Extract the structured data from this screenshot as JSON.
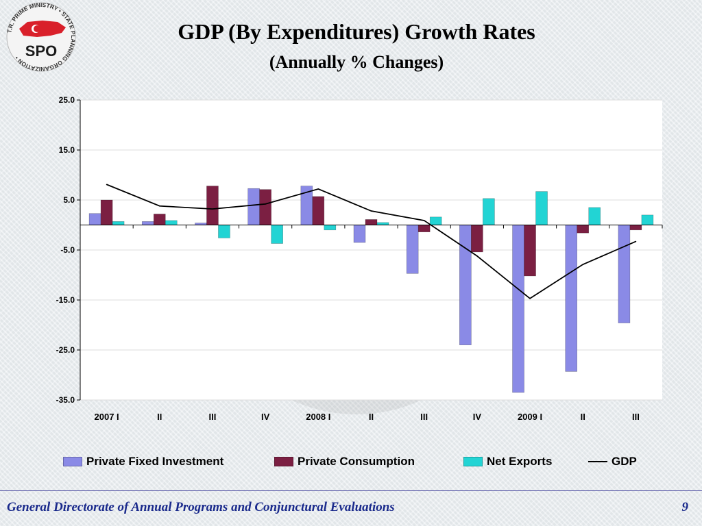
{
  "header": {
    "title": "GDP (By Expenditures) Growth Rates",
    "subtitle": "(Annually % Changes)",
    "logo_text": "SPO",
    "logo_ring_text": "T.R. PRIME MINISTRY • STATE PLANNING ORGANIZATION •"
  },
  "chart_data": {
    "type": "bar",
    "title": "",
    "xlabel": "",
    "ylabel": "",
    "ylim": [
      -35,
      25
    ],
    "yticks": [
      25,
      15,
      5,
      -5,
      -15,
      -25,
      -35
    ],
    "ytick_labels": [
      "25.0",
      "15.0",
      "5.0",
      "-5.0",
      "-15.0",
      "-25.0",
      "-35.0"
    ],
    "categories": [
      "2007 I",
      "II",
      "III",
      "IV",
      "2008 I",
      "II",
      "III",
      "IV",
      "2009 I",
      "II",
      "III"
    ],
    "series": [
      {
        "name": "Private Fixed Investment",
        "kind": "bar",
        "color": "#8a8ae6",
        "values": [
          2.3,
          0.7,
          0.4,
          7.3,
          7.8,
          -3.5,
          -9.7,
          -24.0,
          -33.5,
          -29.3,
          -19.6
        ]
      },
      {
        "name": "Private Consumption",
        "kind": "bar",
        "color": "#7b1f42",
        "values": [
          5.0,
          2.2,
          7.8,
          7.1,
          5.7,
          1.1,
          -1.4,
          -5.4,
          -10.2,
          -1.6,
          -1.0
        ]
      },
      {
        "name": "Net Exports",
        "kind": "bar",
        "color": "#22d4d4",
        "values": [
          0.7,
          0.9,
          -2.6,
          -3.7,
          -1.0,
          0.5,
          1.6,
          5.3,
          6.7,
          3.5,
          2.0
        ]
      },
      {
        "name": "GDP",
        "kind": "line",
        "color": "#000000",
        "values": [
          8.1,
          3.8,
          3.2,
          4.2,
          7.2,
          2.8,
          0.9,
          -6.2,
          -14.7,
          -7.9,
          -3.3
        ]
      }
    ],
    "grid": true,
    "legend_position": "bottom"
  },
  "footer": {
    "text": "General Directorate of Annual Programs and Conjunctural Evaluations",
    "page_number": "9"
  }
}
